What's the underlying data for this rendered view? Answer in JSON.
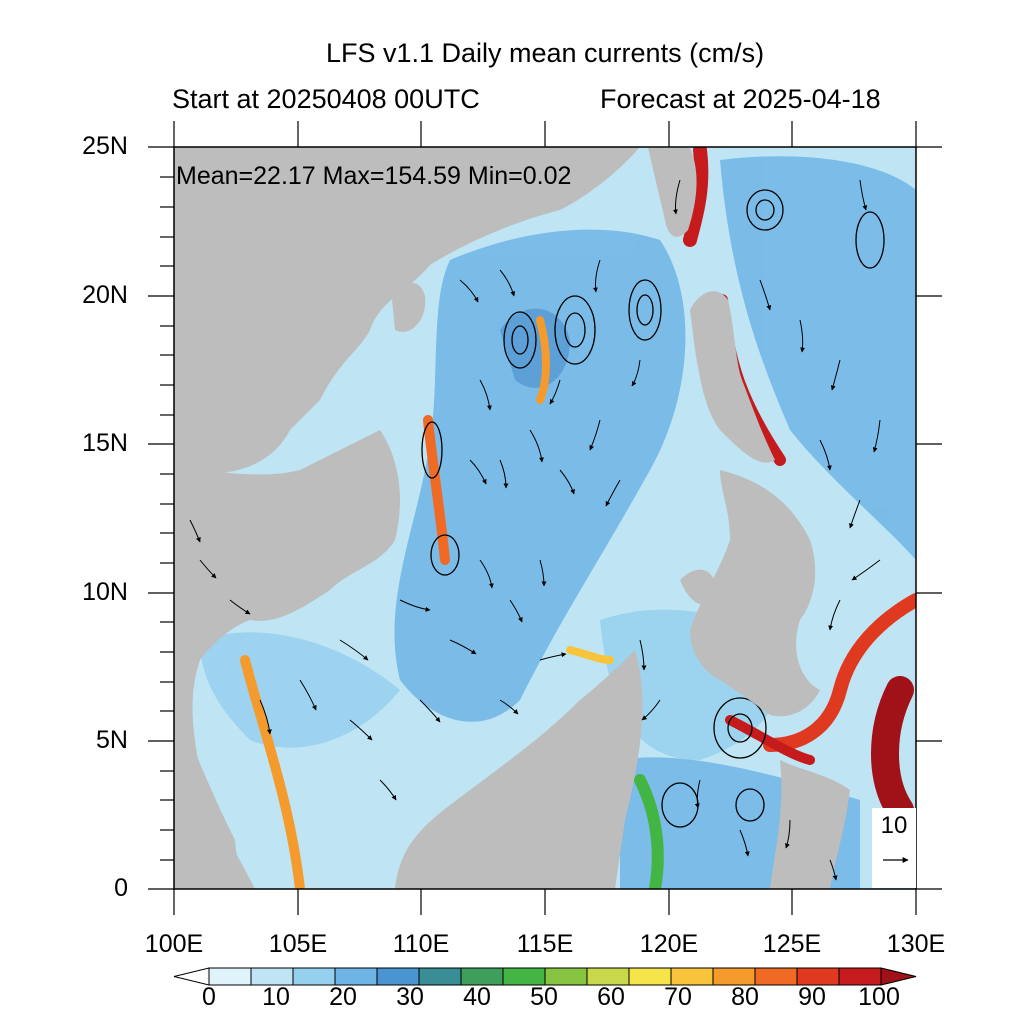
{
  "title": "LFS v1.1 Daily mean currents (cm/s)",
  "subtitle_left": "Start at 20250408 00UTC",
  "subtitle_right": "Forecast at 2025-04-18",
  "stats": "Mean=22.17  Max=154.59  Min=0.02",
  "y_ticks": [
    "25N",
    "20N",
    "15N",
    "10N",
    "5N",
    "0"
  ],
  "x_ticks": [
    "100E",
    "105E",
    "110E",
    "115E",
    "120E",
    "125E",
    "130E"
  ],
  "reference_vector_label": "10",
  "colorbar": {
    "labels": [
      "0",
      "10",
      "20",
      "30",
      "40",
      "50",
      "60",
      "70",
      "80",
      "90",
      "100"
    ],
    "colors": [
      "#ffffff",
      "#e0f3fb",
      "#bfe5f5",
      "#96d0ef",
      "#6eb5e5",
      "#4b94d2",
      "#3a8c95",
      "#3e9f5c",
      "#43b544",
      "#86c441",
      "#c9d84a",
      "#f5e54a",
      "#f7c43c",
      "#f59a2d",
      "#ee6a25",
      "#df3a20",
      "#c51b1d",
      "#a11218"
    ]
  },
  "colors": {
    "land": "#bdbdbd",
    "ocean_base": "#cbe8f7",
    "frame": "#000000"
  }
}
